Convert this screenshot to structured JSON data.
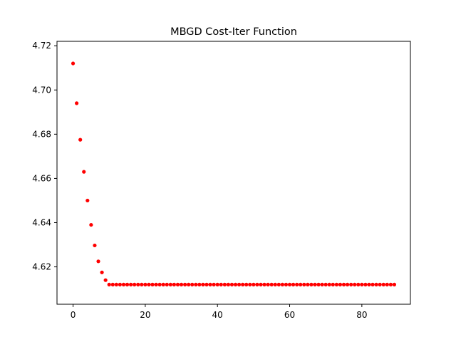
{
  "chart_data": {
    "type": "scatter",
    "title": "MBGD Cost-Iter Function",
    "xlabel": "",
    "ylabel": "",
    "x_ticks": [
      0,
      20,
      40,
      60,
      80
    ],
    "y_ticks": [
      4.62,
      4.64,
      4.66,
      4.68,
      4.7,
      4.72
    ],
    "y_tick_labels": [
      "4.62",
      "4.64",
      "4.66",
      "4.68",
      "4.70",
      "4.72"
    ],
    "xlim": [
      -4.45,
      93.45
    ],
    "ylim": [
      4.6031,
      4.722
    ],
    "grid": false,
    "marker_color": "#ff0000",
    "series": [
      {
        "x": [
          0,
          1,
          2,
          3,
          4,
          5,
          6,
          7,
          8,
          9,
          10,
          11,
          12,
          13,
          14,
          15,
          16,
          17,
          18,
          19,
          20,
          21,
          22,
          23,
          24,
          25,
          26,
          27,
          28,
          29,
          30,
          31,
          32,
          33,
          34,
          35,
          36,
          37,
          38,
          39,
          40,
          41,
          42,
          43,
          44,
          45,
          46,
          47,
          48,
          49,
          50,
          51,
          52,
          53,
          54,
          55,
          56,
          57,
          58,
          59,
          60,
          61,
          62,
          63,
          64,
          65,
          66,
          67,
          68,
          69,
          70,
          71,
          72,
          73,
          74,
          75,
          76,
          77,
          78,
          79,
          80,
          81,
          82,
          83,
          84,
          85,
          86,
          87,
          88,
          89
        ],
        "y": [
          4.712,
          4.694,
          4.6775,
          4.663,
          4.65,
          4.639,
          4.6297,
          4.6225,
          4.6175,
          4.614,
          4.612,
          4.612,
          4.612,
          4.612,
          4.612,
          4.612,
          4.612,
          4.612,
          4.612,
          4.612,
          4.612,
          4.612,
          4.612,
          4.612,
          4.612,
          4.612,
          4.612,
          4.612,
          4.612,
          4.612,
          4.612,
          4.612,
          4.612,
          4.612,
          4.612,
          4.612,
          4.612,
          4.612,
          4.612,
          4.612,
          4.612,
          4.612,
          4.612,
          4.612,
          4.612,
          4.612,
          4.612,
          4.612,
          4.612,
          4.612,
          4.612,
          4.612,
          4.612,
          4.612,
          4.612,
          4.612,
          4.612,
          4.612,
          4.612,
          4.612,
          4.612,
          4.612,
          4.612,
          4.612,
          4.612,
          4.612,
          4.612,
          4.612,
          4.612,
          4.612,
          4.612,
          4.612,
          4.612,
          4.612,
          4.612,
          4.612,
          4.612,
          4.612,
          4.612,
          4.612,
          4.612,
          4.612,
          4.612,
          4.612,
          4.612,
          4.612,
          4.612,
          4.612,
          4.612,
          4.612
        ]
      }
    ]
  }
}
